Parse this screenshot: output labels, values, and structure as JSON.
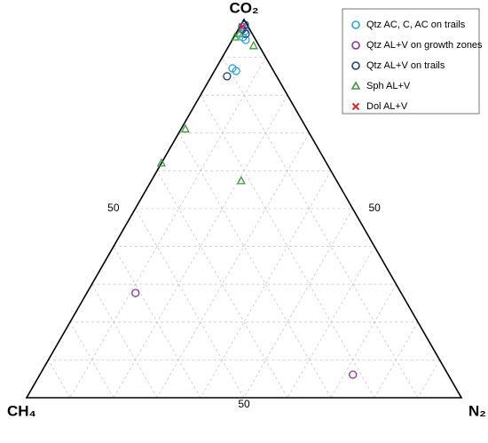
{
  "chart_data": {
    "type": "ternary",
    "lim": [
      0,
      100
    ],
    "grid": true,
    "legend": "top-right",
    "axes": [
      {
        "label": "CO₂",
        "grid_ticks": [
          10,
          20,
          30,
          40,
          50,
          60,
          70,
          80,
          90
        ],
        "label_ticks": [
          50
        ]
      },
      {
        "label": "CH₄",
        "grid_ticks": [
          10,
          20,
          30,
          40,
          50,
          60,
          70,
          80,
          90
        ],
        "label_ticks": [
          50
        ]
      },
      {
        "label": "N₂",
        "grid_ticks": [
          10,
          20,
          30,
          40,
          50,
          60,
          70,
          80,
          90
        ],
        "label_ticks": [
          50
        ]
      }
    ],
    "series": [
      {
        "name": "Qtz AC, C, AC on trails",
        "color": "#2aa6de",
        "marker": "circle",
        "values": [
          [
            87.1,
            9.1,
            3.8
          ],
          [
            86.4,
            8.6,
            5.0
          ],
          [
            95.3,
            2.6,
            2.1
          ],
          [
            94.6,
            2.3,
            3.1
          ],
          [
            96.9,
            1.4,
            1.7
          ],
          [
            98.1,
            1.4,
            0.5
          ]
        ]
      },
      {
        "name": "Qtz AL+V on growth zones",
        "color": "#8e2c9c",
        "marker": "circle",
        "values": [
          [
            27.7,
            61.1,
            11.2
          ],
          [
            6.1,
            21.9,
            72.0
          ]
        ]
      },
      {
        "name": "Qtz AL+V on trails",
        "color": "#1d3a8a",
        "marker": "circle",
        "values": [
          [
            85.0,
            11.4,
            3.6
          ],
          [
            98.6,
            0.5,
            0.9
          ],
          [
            97.4,
            1.7,
            0.9
          ],
          [
            96.2,
            1.5,
            2.3
          ]
        ]
      },
      {
        "name": "Sph AL+V",
        "color": "#3c9a3c",
        "marker": "triangle",
        "values": [
          [
            71.0,
            28.0,
            1.0
          ],
          [
            62.0,
            38.0,
            0.0
          ],
          [
            57.3,
            22.0,
            20.7
          ],
          [
            93.0,
            1.3,
            5.7
          ],
          [
            95.3,
            4.4,
            0.3
          ],
          [
            96.2,
            2.9,
            0.9
          ]
        ]
      },
      {
        "name": "Dol AL+V",
        "color": "#d62a2a",
        "marker": "x",
        "values": [
          [
            98.1,
            1.4,
            0.5
          ]
        ]
      }
    ]
  }
}
